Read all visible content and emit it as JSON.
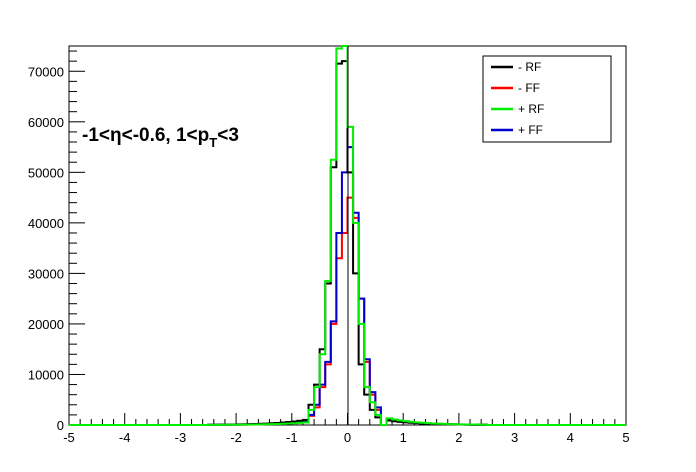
{
  "chart_data": {
    "type": "line",
    "style": "step-histogram",
    "title": "",
    "xlabel": "",
    "ylabel": "",
    "xlim": [
      -5,
      5
    ],
    "ylim": [
      0,
      75000
    ],
    "x_ticks": [
      "-5",
      "-4",
      "-3",
      "-2",
      "-1",
      "0",
      "1",
      "2",
      "3",
      "4",
      "5"
    ],
    "y_ticks": [
      "0",
      "10000",
      "20000",
      "30000",
      "40000",
      "50000",
      "60000",
      "70000"
    ],
    "grid": false,
    "legend_position": "top-right",
    "annotation": {
      "eta_part": "-1<η<-0.6, 1<p",
      "sub": "T",
      "tail": "<3"
    },
    "bin_edges": [
      -5.0,
      -0.7,
      -0.6,
      -0.5,
      -0.4,
      -0.3,
      -0.2,
      -0.1,
      0.0,
      0.1,
      0.2,
      0.3,
      0.4,
      0.5,
      0.6,
      0.7,
      5.0
    ],
    "series": [
      {
        "name": "- RF",
        "color": "#000000",
        "values": [
          0,
          4000,
          8000,
          15000,
          28000,
          51000,
          71500,
          72000,
          50000,
          30000,
          12000,
          6000,
          3000,
          1500,
          0,
          0
        ]
      },
      {
        "name": "- FF",
        "color": "#ff0000",
        "values": [
          0,
          1800,
          3500,
          7500,
          12000,
          20000,
          33000,
          38000,
          45000,
          41000,
          25000,
          12500,
          6000,
          3000,
          0,
          0
        ]
      },
      {
        "name": "+ RF",
        "color": "#00ee00",
        "values": [
          0,
          3000,
          7500,
          14000,
          28500,
          52500,
          74500,
          75000,
          59000,
          40000,
          20000,
          7500,
          4500,
          2000,
          0,
          0
        ]
      },
      {
        "name": "+ FF",
        "color": "#0000cc",
        "values": [
          0,
          2000,
          4000,
          8000,
          12500,
          20500,
          38000,
          50000,
          55000,
          42000,
          25000,
          13000,
          6500,
          3500,
          0,
          0
        ]
      }
    ],
    "tails": {
      "- RF": {
        "left_peak": 1200,
        "right_peak": 900
      },
      "- FF": {
        "left_peak": 700,
        "right_peak": 1100
      },
      "+ RF": {
        "left_peak": 600,
        "right_peak": 1300
      },
      "+ FF": {
        "left_peak": 800,
        "right_peak": 1000
      }
    }
  }
}
